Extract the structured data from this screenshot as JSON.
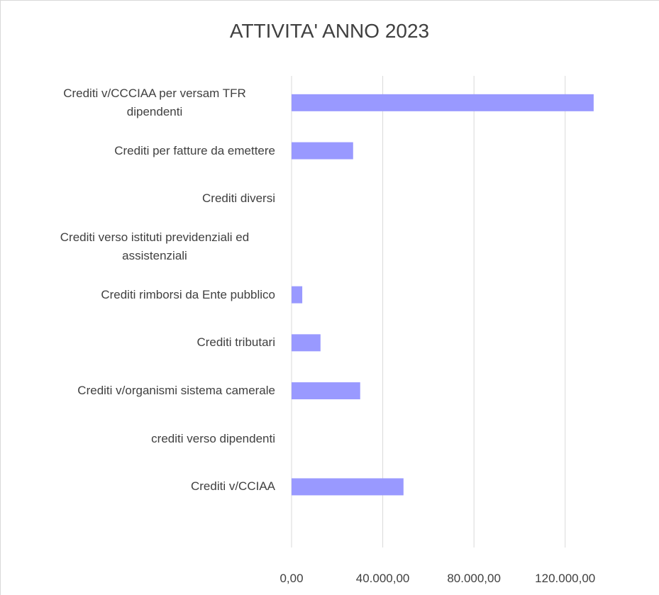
{
  "chart_data": {
    "type": "barh",
    "title": "ATTIVITA' ANNO 2023",
    "categories": [
      "Crediti v/CCCIAA per versam TFR dipendenti",
      "Crediti per fatture da emettere ",
      "Crediti diversi",
      "Crediti verso istituti previdenziali ed assistenziali",
      "Crediti rimborsi da Ente pubblico",
      "Crediti tributari",
      "Crediti v/organismi sistema camerale",
      "crediti verso dipendenti",
      "Crediti v/CCIAA",
      null
    ],
    "values": [
      132500,
      27000,
      0,
      0,
      4700,
      12700,
      30100,
      0,
      49100,
      null
    ],
    "color": "#9999ff",
    "xlim": [
      0,
      140000
    ],
    "xticks": [
      {
        "value": 0,
        "label": "0,00"
      },
      {
        "value": 40000,
        "label": "40.000,00"
      },
      {
        "value": 80000,
        "label": "80.000,00"
      },
      {
        "value": 120000,
        "label": "120.000,00"
      }
    ],
    "grid": true
  }
}
